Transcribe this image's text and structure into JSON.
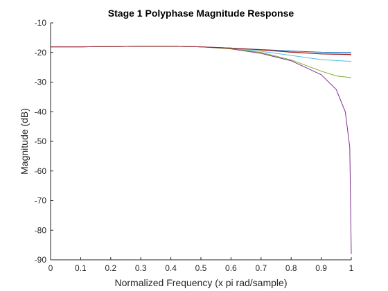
{
  "chart_data": {
    "type": "line",
    "title": "Stage 1 Polyphase Magnitude Response",
    "xlabel": "Normalized Frequency (x pi rad/sample)",
    "ylabel": "Magnitude (dB)",
    "xlim": [
      0,
      1
    ],
    "ylim": [
      -90,
      -10
    ],
    "xticks": [
      0,
      0.1,
      0.2,
      0.3,
      0.4,
      0.5,
      0.6,
      0.7,
      0.8,
      0.9,
      1
    ],
    "xtick_labels": [
      "0",
      "0.1",
      "0.2",
      "0.3",
      "0.4",
      "0.5",
      "0.6",
      "0.7",
      "0.8",
      "0.9",
      "1"
    ],
    "yticks": [
      -90,
      -80,
      -70,
      -60,
      -50,
      -40,
      -30,
      -20,
      -10
    ],
    "ytick_labels": [
      "-90",
      "-80",
      "-70",
      "-60",
      "-50",
      "-40",
      "-30",
      "-20",
      "-10"
    ],
    "grid": false,
    "legend": "none",
    "series": [
      {
        "color": "#0072BD",
        "x": [
          0,
          0.1,
          0.2,
          0.3,
          0.4,
          0.5,
          0.6,
          0.7,
          0.8,
          0.9,
          1.0
        ],
        "y": [
          -18.1,
          -18.1,
          -18.0,
          -17.9,
          -17.9,
          -18.1,
          -18.5,
          -19.0,
          -19.5,
          -19.9,
          -20.0
        ]
      },
      {
        "color": "#D95319",
        "x": [
          0,
          0.1,
          0.2,
          0.3,
          0.4,
          0.5,
          0.6,
          0.7,
          0.8,
          0.9,
          1.0
        ],
        "y": [
          -18.1,
          -18.1,
          -18.0,
          -17.9,
          -17.9,
          -18.1,
          -18.5,
          -19.1,
          -19.8,
          -20.4,
          -20.6
        ]
      },
      {
        "color": "#7E2F8E",
        "x": [
          0,
          0.1,
          0.2,
          0.3,
          0.4,
          0.5,
          0.6,
          0.7,
          0.8,
          0.9,
          0.95,
          0.98,
          0.995,
          1.0
        ],
        "y": [
          -18.1,
          -18.1,
          -18.0,
          -17.9,
          -17.9,
          -18.1,
          -18.8,
          -20.3,
          -22.8,
          -27.5,
          -32.5,
          -40.0,
          -52.0,
          -88.0
        ]
      },
      {
        "color": "#EDB120",
        "x": [
          0,
          0.1,
          0.2,
          0.3,
          0.4,
          0.5,
          0.6,
          0.7,
          0.8,
          0.9,
          1.0
        ],
        "y": [
          -18.1,
          -18.1,
          -18.0,
          -17.9,
          -17.9,
          -18.1,
          -18.5,
          -19.2,
          -19.9,
          -20.5,
          -20.8
        ]
      },
      {
        "color": "#4DBEEE",
        "x": [
          0,
          0.1,
          0.2,
          0.3,
          0.4,
          0.5,
          0.6,
          0.7,
          0.8,
          0.9,
          1.0
        ],
        "y": [
          -18.1,
          -18.1,
          -18.0,
          -17.9,
          -17.9,
          -18.1,
          -18.6,
          -19.6,
          -21.0,
          -22.4,
          -23.0
        ]
      },
      {
        "color": "#77AC30",
        "x": [
          0,
          0.1,
          0.2,
          0.3,
          0.4,
          0.5,
          0.6,
          0.7,
          0.8,
          0.9,
          0.95,
          1.0
        ],
        "y": [
          -18.1,
          -18.1,
          -18.0,
          -17.9,
          -17.9,
          -18.1,
          -18.7,
          -20.0,
          -22.5,
          -26.3,
          -27.9,
          -28.5
        ]
      },
      {
        "color": "#A2142F",
        "x": [
          0,
          0.1,
          0.2,
          0.3,
          0.4,
          0.5,
          0.6,
          0.7,
          0.8,
          0.9,
          1.0
        ],
        "y": [
          -18.1,
          -18.1,
          -18.0,
          -17.9,
          -17.9,
          -18.1,
          -18.5,
          -19.1,
          -19.9,
          -20.5,
          -20.7
        ]
      }
    ]
  }
}
